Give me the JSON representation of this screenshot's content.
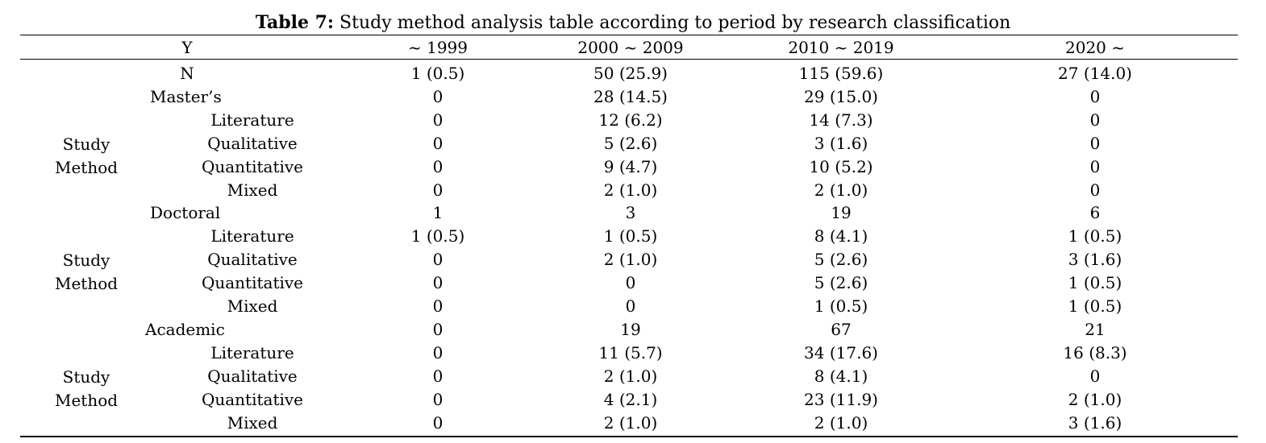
{
  "caption": {
    "label": "Table 7:",
    "text": " Study method analysis table according to period by research classification"
  },
  "header": {
    "y_label": "Y",
    "periods": [
      "~ 1999",
      "2000 ~ 2009",
      "2010 ~ 2019",
      "2020 ~"
    ]
  },
  "rows": [
    {
      "label": "N",
      "values": [
        "1 (0.5)",
        "50 (25.9)",
        "115 (59.6)",
        "27 (14.0)"
      ]
    },
    {
      "label": "Master’s",
      "values": [
        "0",
        "28 (14.5)",
        "29 (15.0)",
        "0"
      ]
    },
    {
      "label": "Literature",
      "values": [
        "0",
        "12 (6.2)",
        "14 (7.3)",
        "0"
      ]
    },
    {
      "label": "Qualitative",
      "values": [
        "0",
        "5 (2.6)",
        "3 (1.6)",
        "0"
      ]
    },
    {
      "label": "Quantitative",
      "values": [
        "0",
        "9 (4.7)",
        "10 (5.2)",
        "0"
      ]
    },
    {
      "label": "Mixed",
      "values": [
        "0",
        "2 (1.0)",
        "2 (1.0)",
        "0"
      ]
    },
    {
      "label": "Doctoral",
      "values": [
        "1",
        "3",
        "19",
        "6"
      ]
    },
    {
      "label": "Literature",
      "values": [
        "1 (0.5)",
        "1 (0.5)",
        "8 (4.1)",
        "1 (0.5)"
      ]
    },
    {
      "label": "Qualitative",
      "values": [
        "0",
        "2 (1.0)",
        "5 (2.6)",
        "3 (1.6)"
      ]
    },
    {
      "label": "Quantitative",
      "values": [
        "0",
        "0",
        "5 (2.6)",
        "1 (0.5)"
      ]
    },
    {
      "label": "Mixed",
      "values": [
        "0",
        "0",
        "1 (0.5)",
        "1 (0.5)"
      ]
    },
    {
      "label": "Academic",
      "values": [
        "0",
        "19",
        "67",
        "21"
      ]
    },
    {
      "label": "Literature",
      "values": [
        "0",
        "11 (5.7)",
        "34 (17.6)",
        "16 (8.3)"
      ]
    },
    {
      "label": "Qualitative",
      "values": [
        "0",
        "2 (1.0)",
        "8 (4.1)",
        "0"
      ]
    },
    {
      "label": "Quantitative",
      "values": [
        "0",
        "4 (2.1)",
        "23 (11.9)",
        "2 (1.0)"
      ]
    },
    {
      "label": "Mixed",
      "values": [
        "0",
        "2 (1.0)",
        "2 (1.0)",
        "3 (1.6)"
      ]
    }
  ],
  "method_groups": [
    {
      "line1": "Study",
      "line2": "Method"
    },
    {
      "line1": "Study",
      "line2": "Method"
    },
    {
      "line1": "Study",
      "line2": "Method"
    }
  ]
}
